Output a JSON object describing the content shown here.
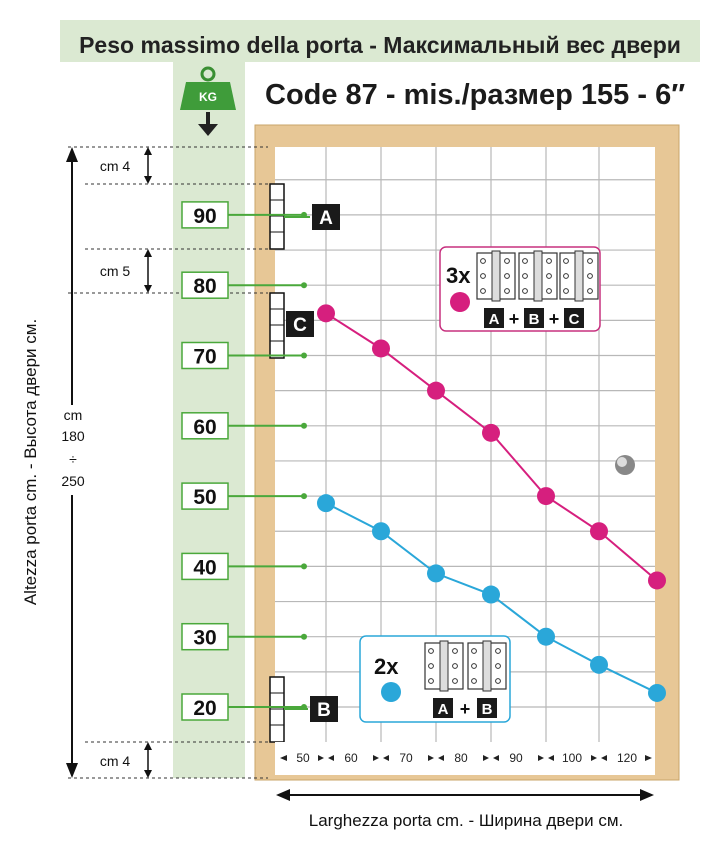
{
  "header": {
    "top_title": "Peso massimo della porta  -  Максимальный вес двери",
    "main_title": "Code 87 - mis./размер 155 - 6″",
    "weight_icon_label": "KG"
  },
  "colors": {
    "pink": "#d61f7e",
    "blue": "#2aa7d9",
    "green": "#4aa83b",
    "wood": "#e7c796",
    "band": "#dbe9d2",
    "grid": "#b8b8b8"
  },
  "left_axis": {
    "title": "Altezza porta cm.  -  Высота двери см.",
    "range_cm": "cm",
    "range_top": "180",
    "range_sep": "÷",
    "range_bottom": "250"
  },
  "gaps": {
    "top": "cm 4",
    "middle": "cm 5",
    "bottom": "cm 4"
  },
  "hinges": {
    "A": "A",
    "B": "B",
    "C": "C"
  },
  "legend_3x": {
    "count": "3x",
    "combo": [
      "A",
      "+",
      "B",
      "+",
      "C"
    ]
  },
  "legend_2x": {
    "count": "2x",
    "combo": [
      "A",
      "+",
      "B"
    ]
  },
  "chart_data": {
    "type": "line",
    "title": "Code 87 - mis./размер 155 - 6″",
    "xlabel": "Larghezza porta cm.  -  Ширина двери см.",
    "ylabel": "Peso massimo della porta  -  Максимальный вес двери",
    "x_ticks": [
      "50",
      "60",
      "70",
      "80",
      "90",
      "100",
      "120"
    ],
    "y_ticks": [
      "90",
      "80",
      "70",
      "60",
      "50",
      "40",
      "30",
      "20"
    ],
    "ylim": [
      15,
      105
    ],
    "grid": true,
    "series": [
      {
        "name": "3x",
        "color": "#d61f7e",
        "x": [
          50,
          60,
          70,
          80,
          90,
          100,
          120
        ],
        "y": [
          76,
          71,
          65,
          59,
          50,
          45,
          38
        ]
      },
      {
        "name": "2x",
        "color": "#2aa7d9",
        "x": [
          50,
          60,
          70,
          80,
          90,
          100,
          120
        ],
        "y": [
          49,
          45,
          39,
          36,
          30,
          26,
          22
        ]
      }
    ]
  }
}
